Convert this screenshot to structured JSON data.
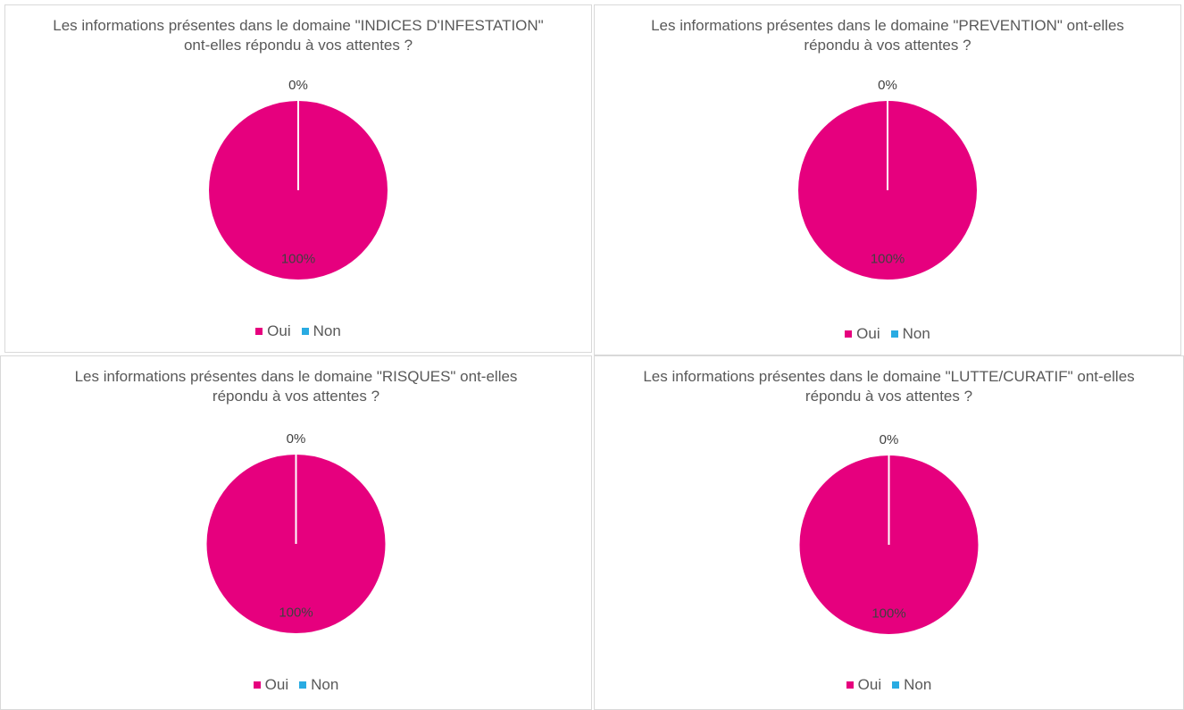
{
  "chart_data": [
    {
      "type": "pie",
      "title": "Les informations présentes dans le domaine \"INDICES D'INFESTATION\" ont-elles répondu à vos attentes ?",
      "categories": [
        "Oui",
        "Non"
      ],
      "values": [
        100,
        0
      ],
      "value_labels": [
        "100%",
        "0%"
      ],
      "colors": [
        "#e6007e",
        "#29abe2"
      ],
      "legend": "bottom"
    },
    {
      "type": "pie",
      "title": "Les informations présentes dans le domaine \"PREVENTION\" ont-elles répondu à vos attentes ?",
      "categories": [
        "Oui",
        "Non"
      ],
      "values": [
        100,
        0
      ],
      "value_labels": [
        "100%",
        "0%"
      ],
      "colors": [
        "#e6007e",
        "#29abe2"
      ],
      "legend": "bottom"
    },
    {
      "type": "pie",
      "title": "Les informations présentes dans le domaine \"RISQUES\" ont-elles répondu à vos attentes ?",
      "categories": [
        "Oui",
        "Non"
      ],
      "values": [
        100,
        0
      ],
      "value_labels": [
        "100%",
        "0%"
      ],
      "colors": [
        "#e6007e",
        "#29abe2"
      ],
      "legend": "bottom"
    },
    {
      "type": "pie",
      "title": "Les informations présentes dans le domaine \"LUTTE/CURATIF\" ont-elles répondu à vos attentes ?",
      "categories": [
        "Oui",
        "Non"
      ],
      "values": [
        100,
        0
      ],
      "value_labels": [
        "100%",
        "0%"
      ],
      "colors": [
        "#e6007e",
        "#29abe2"
      ],
      "legend": "bottom"
    }
  ]
}
